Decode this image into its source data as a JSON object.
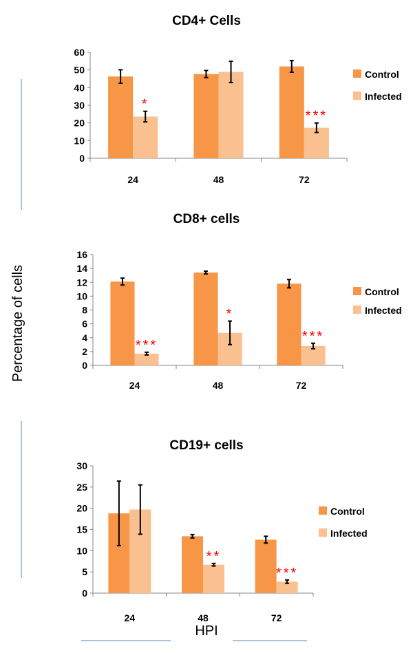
{
  "ylabel": "Percentage of cells",
  "xlabel": "HPI",
  "colors": {
    "control": "#f79646",
    "infected": "#fac090",
    "sig": "#ff0000",
    "rule": "#4f81bd"
  },
  "chart_data": [
    {
      "type": "bar",
      "title": "CD4+ Cells",
      "categories": [
        "24",
        "48",
        "72"
      ],
      "ylim": [
        0,
        60
      ],
      "yticks": [
        "0",
        "10",
        "20",
        "30",
        "40",
        "50",
        "60"
      ],
      "legend": "right",
      "series": [
        {
          "name": "Control",
          "values": [
            46.3,
            47.7,
            52.0
          ],
          "errors": [
            3.8,
            2.0,
            3.3
          ],
          "sig": [
            "",
            "",
            ""
          ]
        },
        {
          "name": "Infected",
          "values": [
            23.6,
            48.9,
            17.3
          ],
          "errors": [
            3.0,
            6.0,
            2.7
          ],
          "sig": [
            "*",
            "",
            "***"
          ]
        }
      ]
    },
    {
      "type": "bar",
      "title": "CD8+ cells",
      "categories": [
        "24",
        "48",
        "72"
      ],
      "ylim": [
        0,
        16
      ],
      "yticks": [
        "0",
        "2",
        "4",
        "6",
        "8",
        "10",
        "12",
        "14",
        "16"
      ],
      "legend": "right",
      "series": [
        {
          "name": "Control",
          "values": [
            12.1,
            13.4,
            11.8
          ],
          "errors": [
            0.5,
            0.2,
            0.6
          ],
          "sig": [
            "",
            "",
            ""
          ]
        },
        {
          "name": "Infected",
          "values": [
            1.7,
            4.7,
            2.8
          ],
          "errors": [
            0.2,
            1.7,
            0.4
          ],
          "sig": [
            "***",
            "*",
            "***"
          ]
        }
      ]
    },
    {
      "type": "bar",
      "title": "CD19+ cells",
      "categories": [
        "24",
        "48",
        "72"
      ],
      "ylim": [
        0,
        30
      ],
      "yticks": [
        "0",
        "5",
        "10",
        "15",
        "20",
        "25",
        "30"
      ],
      "legend": "right",
      "series": [
        {
          "name": "Control",
          "values": [
            18.8,
            13.4,
            12.6
          ],
          "errors": [
            7.6,
            0.4,
            0.8
          ],
          "sig": [
            "",
            "",
            ""
          ]
        },
        {
          "name": "Infected",
          "values": [
            19.7,
            6.7,
            2.7
          ],
          "errors": [
            5.8,
            0.3,
            0.4
          ],
          "sig": [
            "",
            "**",
            "***"
          ]
        }
      ]
    }
  ]
}
